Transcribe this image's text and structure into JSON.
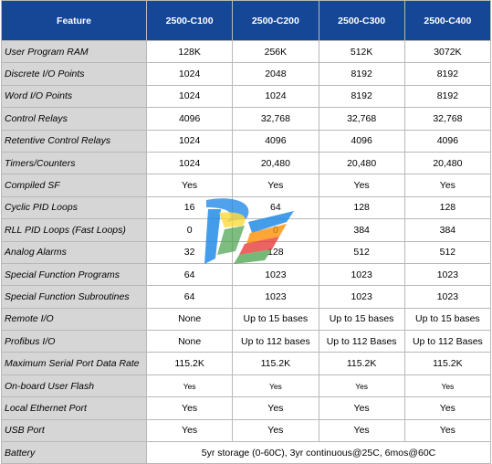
{
  "header": {
    "feature": "Feature",
    "c100": "2500-C100",
    "c200": "2500-C200",
    "c300": "2500-C300",
    "c400": "2500-C400"
  },
  "rows": [
    {
      "feature": "User Program RAM",
      "v": [
        "128K",
        "256K",
        "512K",
        "3072K"
      ]
    },
    {
      "feature": "Discrete I/O Points",
      "v": [
        "1024",
        "2048",
        "8192",
        "8192"
      ]
    },
    {
      "feature": "Word I/O Points",
      "v": [
        "1024",
        "1024",
        "8192",
        "8192"
      ]
    },
    {
      "feature": "Control Relays",
      "v": [
        "4096",
        "32,768",
        "32,768",
        "32,768"
      ]
    },
    {
      "feature": "Retentive Control Relays",
      "v": [
        "1024",
        "4096",
        "4096",
        "4096"
      ]
    },
    {
      "feature": "Timers/Counters",
      "v": [
        "1024",
        "20,480",
        "20,480",
        "20,480"
      ]
    },
    {
      "feature": "Compiled SF",
      "v": [
        "Yes",
        "Yes",
        "Yes",
        "Yes"
      ]
    },
    {
      "feature": "Cyclic PID Loops",
      "v": [
        "16",
        "64",
        "128",
        "128"
      ]
    },
    {
      "feature": "RLL PID Loops (Fast Loops)",
      "v": [
        "0",
        "0",
        "384",
        "384"
      ]
    },
    {
      "feature": "Analog Alarms",
      "v": [
        "32",
        "128",
        "512",
        "512"
      ]
    },
    {
      "feature": "Special Function Programs",
      "v": [
        "64",
        "1023",
        "1023",
        "1023"
      ]
    },
    {
      "feature": "Special Function Subroutines",
      "v": [
        "64",
        "1023",
        "1023",
        "1023"
      ]
    },
    {
      "feature": "Remote I/O",
      "v": [
        "None",
        "Up to 15 bases",
        "Up to 15 bases",
        "Up to 15 bases"
      ]
    },
    {
      "feature": "Profibus I/O",
      "v": [
        "None",
        "Up to 112 bases",
        "Up to 112 Bases",
        "Up to 112 Bases"
      ]
    },
    {
      "feature": "Maximum Serial Port Data Rate",
      "v": [
        "115.2K",
        "115.2K",
        "115.2K",
        "115.2K"
      ]
    },
    {
      "feature": "On-board User Flash",
      "v": [
        "Yes",
        "Yes",
        "Yes",
        "Yes"
      ]
    },
    {
      "feature": "Local Ethernet Port",
      "v": [
        "Yes",
        "Yes",
        "Yes",
        "Yes"
      ]
    },
    {
      "feature": "USB Port",
      "v": [
        "Yes",
        "Yes",
        "Yes",
        "Yes"
      ]
    }
  ],
  "battery": {
    "feature": "Battery",
    "value": "5yr storage (0-60C), 3yr continuous@25C, 6mos@60C"
  },
  "watermark": {
    "icon": "colorful-logo-watermark",
    "colors": [
      "#e53935",
      "#fb8c00",
      "#fdd835",
      "#43a047",
      "#1e88e5"
    ]
  }
}
